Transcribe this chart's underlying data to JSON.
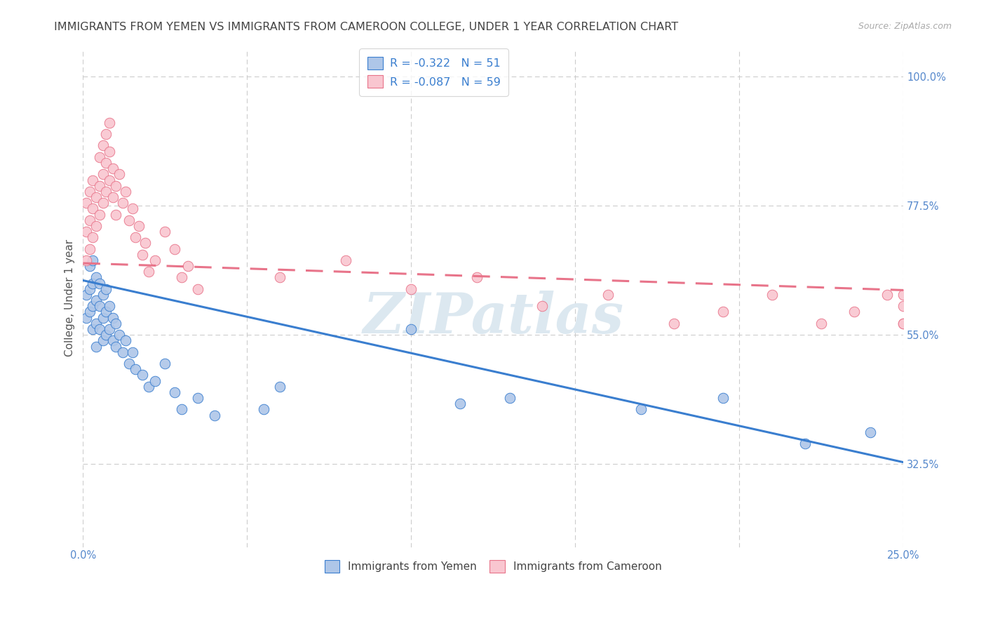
{
  "title": "IMMIGRANTS FROM YEMEN VS IMMIGRANTS FROM CAMEROON COLLEGE, UNDER 1 YEAR CORRELATION CHART",
  "source": "Source: ZipAtlas.com",
  "ylabel": "College, Under 1 year",
  "xmin": 0.0,
  "xmax": 0.25,
  "ymin": 0.18,
  "ymax": 1.05,
  "xticks": [
    0.0,
    0.05,
    0.1,
    0.15,
    0.2,
    0.25
  ],
  "ytick_positions": [
    0.325,
    0.55,
    0.775,
    1.0
  ],
  "yticklabels": [
    "32.5%",
    "55.0%",
    "77.5%",
    "100.0%"
  ],
  "legend_R1": "R = -0.322",
  "legend_N1": "N = 51",
  "legend_R2": "R = -0.087",
  "legend_N2": "N = 59",
  "blue_scatter_x": [
    0.001,
    0.001,
    0.002,
    0.002,
    0.002,
    0.003,
    0.003,
    0.003,
    0.003,
    0.004,
    0.004,
    0.004,
    0.004,
    0.005,
    0.005,
    0.005,
    0.006,
    0.006,
    0.006,
    0.007,
    0.007,
    0.007,
    0.008,
    0.008,
    0.009,
    0.009,
    0.01,
    0.01,
    0.011,
    0.012,
    0.013,
    0.014,
    0.015,
    0.016,
    0.018,
    0.02,
    0.022,
    0.025,
    0.028,
    0.03,
    0.035,
    0.04,
    0.055,
    0.06,
    0.1,
    0.115,
    0.13,
    0.17,
    0.195,
    0.22,
    0.24
  ],
  "blue_scatter_y": [
    0.62,
    0.58,
    0.67,
    0.63,
    0.59,
    0.68,
    0.64,
    0.6,
    0.56,
    0.65,
    0.61,
    0.57,
    0.53,
    0.64,
    0.6,
    0.56,
    0.62,
    0.58,
    0.54,
    0.63,
    0.59,
    0.55,
    0.6,
    0.56,
    0.58,
    0.54,
    0.57,
    0.53,
    0.55,
    0.52,
    0.54,
    0.5,
    0.52,
    0.49,
    0.48,
    0.46,
    0.47,
    0.5,
    0.45,
    0.42,
    0.44,
    0.41,
    0.42,
    0.46,
    0.56,
    0.43,
    0.44,
    0.42,
    0.44,
    0.36,
    0.38
  ],
  "pink_scatter_x": [
    0.001,
    0.001,
    0.001,
    0.002,
    0.002,
    0.002,
    0.003,
    0.003,
    0.003,
    0.004,
    0.004,
    0.005,
    0.005,
    0.005,
    0.006,
    0.006,
    0.006,
    0.007,
    0.007,
    0.007,
    0.008,
    0.008,
    0.008,
    0.009,
    0.009,
    0.01,
    0.01,
    0.011,
    0.012,
    0.013,
    0.014,
    0.015,
    0.016,
    0.017,
    0.018,
    0.019,
    0.02,
    0.022,
    0.025,
    0.028,
    0.03,
    0.032,
    0.035,
    0.06,
    0.08,
    0.1,
    0.12,
    0.14,
    0.16,
    0.18,
    0.195,
    0.21,
    0.225,
    0.235,
    0.245,
    0.25,
    0.25,
    0.25,
    0.25
  ],
  "pink_scatter_y": [
    0.68,
    0.73,
    0.78,
    0.7,
    0.75,
    0.8,
    0.72,
    0.77,
    0.82,
    0.74,
    0.79,
    0.76,
    0.81,
    0.86,
    0.78,
    0.83,
    0.88,
    0.8,
    0.85,
    0.9,
    0.82,
    0.87,
    0.92,
    0.84,
    0.79,
    0.81,
    0.76,
    0.83,
    0.78,
    0.8,
    0.75,
    0.77,
    0.72,
    0.74,
    0.69,
    0.71,
    0.66,
    0.68,
    0.73,
    0.7,
    0.65,
    0.67,
    0.63,
    0.65,
    0.68,
    0.63,
    0.65,
    0.6,
    0.62,
    0.57,
    0.59,
    0.62,
    0.57,
    0.59,
    0.62,
    0.57,
    0.62,
    0.57,
    0.6
  ],
  "blue_line_x": [
    0.0,
    0.25
  ],
  "blue_line_y": [
    0.645,
    0.328
  ],
  "pink_line_x": [
    0.0,
    0.25
  ],
  "pink_line_y": [
    0.675,
    0.628
  ],
  "blue_color": "#aec6e8",
  "blue_line_color": "#3a7ecf",
  "pink_color": "#f9c6d0",
  "pink_line_color": "#e8748a",
  "background_color": "#ffffff",
  "grid_color": "#cccccc",
  "watermark_color": "#dce8f0",
  "title_color": "#444444",
  "ylabel_color": "#555555",
  "tick_color": "#5588cc",
  "title_fontsize": 11.5,
  "axis_label_fontsize": 11,
  "tick_fontsize": 10.5,
  "source_color": "#aaaaaa"
}
